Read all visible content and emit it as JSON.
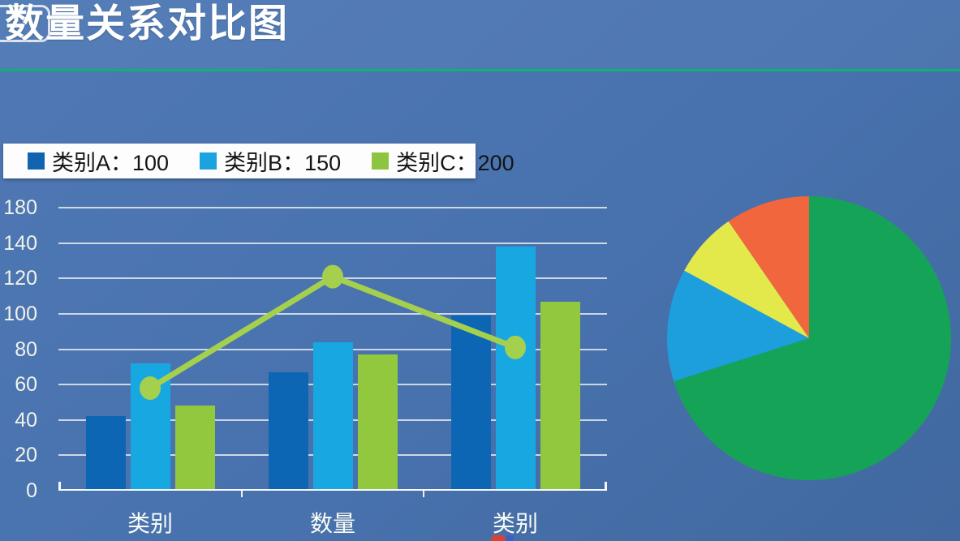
{
  "page": {
    "title": "数量关系对比图",
    "background_color": "#4872ae",
    "divider_color": "#0db36e"
  },
  "legend": {
    "items": [
      {
        "label": "类别A：100",
        "color": "#1165b0"
      },
      {
        "label": "类别B：150",
        "color": "#1ba3e0"
      },
      {
        "label": "类别C：200",
        "color": "#8dc540"
      }
    ]
  },
  "chart_data": [
    {
      "type": "bar",
      "title": "",
      "categories": [
        "类别",
        "数量",
        "类别"
      ],
      "series": [
        {
          "name": "类别A",
          "color": "#0d66b3",
          "values": [
            42,
            67,
            99
          ]
        },
        {
          "name": "类别B",
          "color": "#18a8e1",
          "values": [
            72,
            84,
            138
          ]
        },
        {
          "name": "类别C",
          "color": "#92c83e",
          "values": [
            48,
            77,
            107
          ]
        }
      ],
      "line_overlay": {
        "color": "#a5d04e",
        "values": [
          58,
          121,
          81
        ]
      },
      "y_tick_labels": [
        "180",
        "140",
        "120",
        "100",
        "80",
        "60",
        "40",
        "20",
        "0"
      ],
      "ylim": [
        0,
        160
      ],
      "grid": true,
      "legend_position": "top-left"
    },
    {
      "type": "pie",
      "slices": [
        {
          "name": "green-slice",
          "color": "#15a457",
          "percent": 70.1
        },
        {
          "name": "blue-slice",
          "color": "#1d9edd",
          "percent": 12.8
        },
        {
          "name": "yellow-slice",
          "color": "#e3e94b",
          "percent": 7.5
        },
        {
          "name": "orange-slice",
          "color": "#f1663c",
          "percent": 9.6
        }
      ],
      "start_angle_deg": 0,
      "direction": "clockwise"
    }
  ]
}
